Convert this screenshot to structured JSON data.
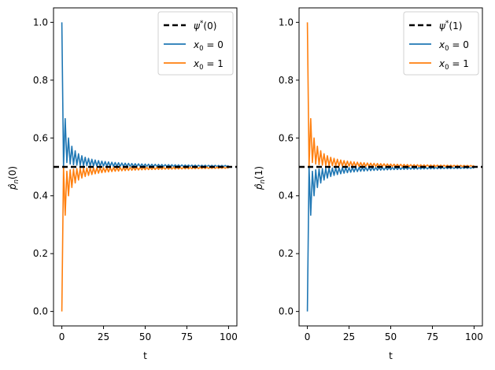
{
  "chart_data": [
    {
      "type": "line",
      "xlabel": "t",
      "ylabel": "p̂n(0)",
      "xlim": [
        -5,
        105
      ],
      "ylim": [
        -0.05,
        1.05
      ],
      "xticks": [
        0,
        25,
        50,
        75,
        100
      ],
      "yticks": [
        0.0,
        0.2,
        0.4,
        0.6,
        0.8,
        1.0
      ],
      "xtick_labels": [
        "0",
        "25",
        "50",
        "75",
        "100"
      ],
      "ytick_labels": [
        "0.0",
        "0.2",
        "0.4",
        "0.6",
        "0.8",
        "1.0"
      ],
      "legend_position": "top-right",
      "hline": {
        "name": "ψ*(0)",
        "value": 0.5,
        "color": "#000000",
        "style": "dashed"
      },
      "series": [
        {
          "name": "x0 = 0",
          "color": "#1f77b4",
          "start": 1.0
        },
        {
          "name": "x0 = 1",
          "color": "#ff7f0e",
          "start": 0.0
        }
      ],
      "t_range": [
        0,
        100
      ],
      "legend": [
        {
          "label": "ψ*(0)",
          "color": "#000000",
          "style": "dashed"
        },
        {
          "label": "x0 = 0",
          "color": "#1f77b4",
          "style": "solid"
        },
        {
          "label": "x0 = 1",
          "color": "#ff7f0e",
          "style": "solid"
        }
      ]
    },
    {
      "type": "line",
      "xlabel": "t",
      "ylabel": "p̂n(1)",
      "xlim": [
        -5,
        105
      ],
      "ylim": [
        -0.05,
        1.05
      ],
      "xticks": [
        0,
        25,
        50,
        75,
        100
      ],
      "yticks": [
        0.0,
        0.2,
        0.4,
        0.6,
        0.8,
        1.0
      ],
      "xtick_labels": [
        "0",
        "25",
        "50",
        "75",
        "100"
      ],
      "ytick_labels": [
        "0.0",
        "0.2",
        "0.4",
        "0.6",
        "0.8",
        "1.0"
      ],
      "legend_position": "top-right",
      "hline": {
        "name": "ψ*(1)",
        "value": 0.5,
        "color": "#000000",
        "style": "dashed"
      },
      "series": [
        {
          "name": "x0 = 0",
          "color": "#1f77b4",
          "start": 0.0
        },
        {
          "name": "x0 = 1",
          "color": "#ff7f0e",
          "start": 1.0
        }
      ],
      "t_range": [
        0,
        100
      ],
      "legend": [
        {
          "label": "ψ*(1)",
          "color": "#000000",
          "style": "dashed"
        },
        {
          "label": "x0 = 0",
          "color": "#1f77b4",
          "style": "solid"
        },
        {
          "label": "x0 = 1",
          "color": "#ff7f0e",
          "style": "solid"
        }
      ]
    }
  ]
}
